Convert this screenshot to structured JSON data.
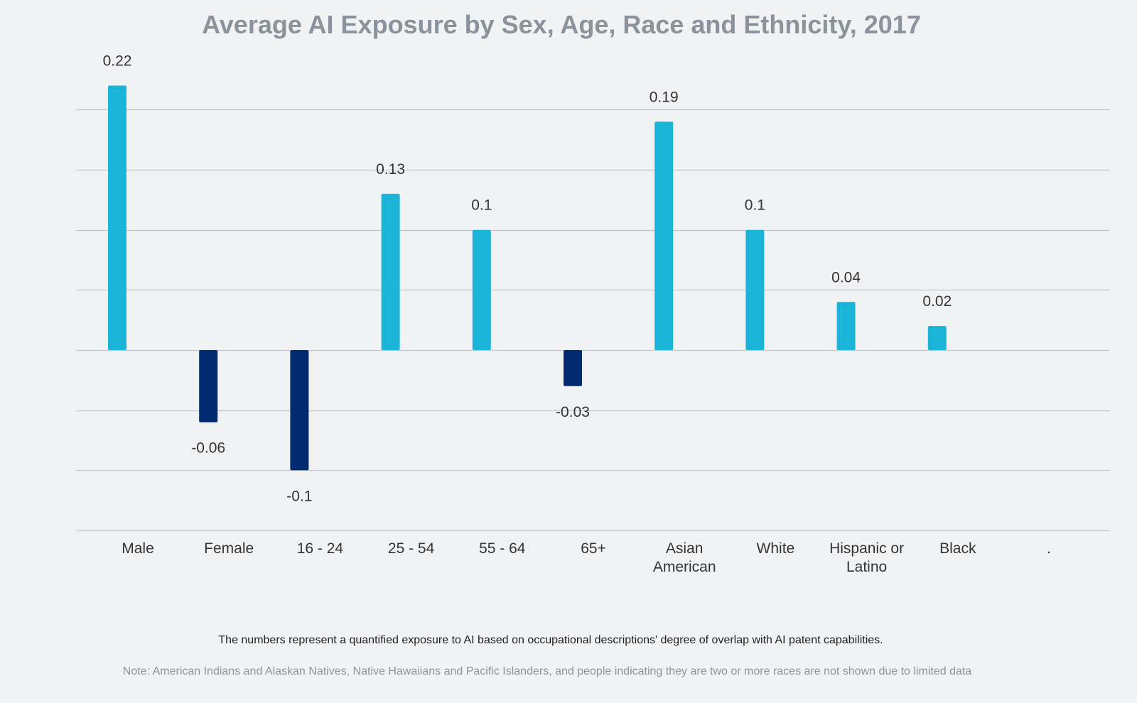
{
  "chart_data": {
    "type": "bar",
    "title": "Average AI Exposure by Sex, Age, Race and Ethnicity, 2017",
    "categories": [
      [
        "Male"
      ],
      [
        "Female"
      ],
      [
        "16 - 24"
      ],
      [
        "25 - 54"
      ],
      [
        "55 - 64"
      ],
      [
        "65+"
      ],
      [
        "Asian",
        "American"
      ],
      [
        "White"
      ],
      [
        "Hispanic or",
        "Latino"
      ],
      [
        "Black"
      ],
      [
        "."
      ]
    ],
    "values": [
      0.22,
      -0.06,
      -0.1,
      0.13,
      0.1,
      -0.03,
      0.19,
      0.1,
      0.04,
      0.02,
      null
    ],
    "data_labels": [
      "0.22",
      "-0.06",
      "-0.1",
      "0.13",
      "0.1",
      "-0.03",
      "0.19",
      "0.1",
      "0.04",
      "0.02",
      ""
    ],
    "ylim": [
      -0.15,
      0.2
    ],
    "grid_step": 0.05,
    "xlabel": "",
    "ylabel": "",
    "grid": true,
    "legend": "none",
    "colors": {
      "positive": "#1cb3d9",
      "negative": "#012a73",
      "grid": "#c4c7cc",
      "text": "#333333"
    }
  },
  "caption": "The numbers represent a quantified exposure to AI based on occupational descriptions' degree of overlap with AI patent capabilities.",
  "note": "Note: American Indians and Alaskan Natives, Native Hawaiians and Pacific Islanders, and people indicating they are two or more races are not shown due to limited data"
}
